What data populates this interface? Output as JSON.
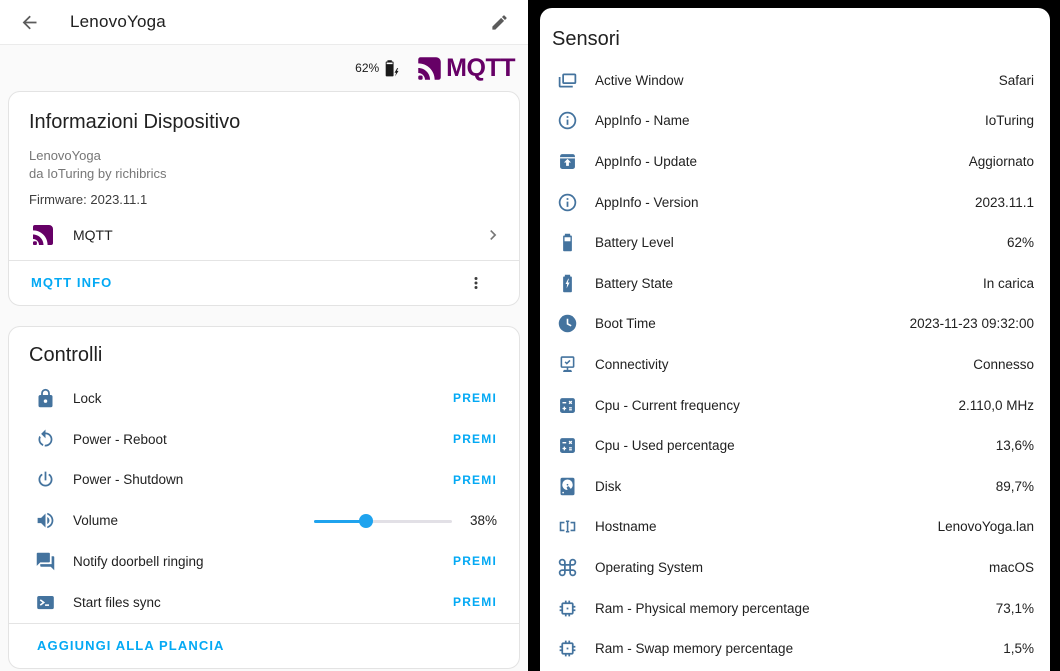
{
  "colors": {
    "accent": "#03a9f4",
    "icon_blue": "#44739e",
    "mqtt_purple": "#660066",
    "slider_blue": "#1fa3ee"
  },
  "header": {
    "title": "LenovoYoga"
  },
  "status": {
    "battery_percent": "62%",
    "mqtt_wordmark": "MQTT"
  },
  "device_info_card": {
    "title": "Informazioni Dispositivo",
    "device_name": "LenovoYoga",
    "via": "da IoTuring by richibrics",
    "firmware": "Firmware: 2023.11.1",
    "integration_label": "MQTT",
    "footer_link": "MQTT INFO"
  },
  "controls_card": {
    "title": "Controlli",
    "rows": [
      {
        "label": "Lock",
        "icon": "lock-icon",
        "action": "PREMI"
      },
      {
        "label": "Power - Reboot",
        "icon": "restart-icon",
        "action": "PREMI"
      },
      {
        "label": "Power - Shutdown",
        "icon": "power-icon",
        "action": "PREMI"
      },
      {
        "label": "Volume",
        "icon": "volume-high-icon",
        "value": "38%",
        "percent": 38
      },
      {
        "label": "Notify doorbell ringing",
        "icon": "message-icon",
        "action": "PREMI"
      },
      {
        "label": "Start files sync",
        "icon": "console-icon",
        "action": "PREMI"
      }
    ],
    "footer_link": "AGGIUNGI ALLA PLANCIA"
  },
  "sensors_card": {
    "title": "Sensori",
    "rows": [
      {
        "label": "Active Window",
        "value": "Safari",
        "icon": "dock-window-icon"
      },
      {
        "label": "AppInfo - Name",
        "value": "IoTuring",
        "icon": "information-icon"
      },
      {
        "label": "AppInfo - Update",
        "value": "Aggiornato",
        "icon": "package-up-icon"
      },
      {
        "label": "AppInfo - Version",
        "value": "2023.11.1",
        "icon": "information-icon"
      },
      {
        "label": "Battery Level",
        "value": "62%",
        "icon": "battery-icon"
      },
      {
        "label": "Battery State",
        "value": "In carica",
        "icon": "battery-charging-icon"
      },
      {
        "label": "Boot Time",
        "value": "2023-11-23 09:32:00",
        "icon": "clock-icon"
      },
      {
        "label": "Connectivity",
        "value": "Connesso",
        "icon": "monitor-check-icon"
      },
      {
        "label": "Cpu - Current frequency",
        "value": "2.110,0 MHz",
        "icon": "calculator-icon"
      },
      {
        "label": "Cpu - Used percentage",
        "value": "13,6%",
        "icon": "calculator-icon"
      },
      {
        "label": "Disk",
        "value": "89,7%",
        "icon": "harddisk-icon"
      },
      {
        "label": "Hostname",
        "value": "LenovoYoga.lan",
        "icon": "network-icon"
      },
      {
        "label": "Operating System",
        "value": "macOS",
        "icon": "command-icon"
      },
      {
        "label": "Ram - Physical memory percentage",
        "value": "73,1%",
        "icon": "memory-icon"
      },
      {
        "label": "Ram - Swap memory percentage",
        "value": "1,5%",
        "icon": "memory-icon"
      }
    ]
  }
}
